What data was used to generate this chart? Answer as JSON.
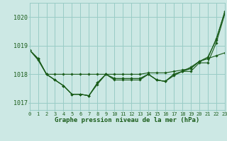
{
  "background_color": "#cce8e4",
  "grid_color": "#99ccc6",
  "line_color": "#1a5c1a",
  "marker_color": "#1a5c1a",
  "xlabel": "Graphe pression niveau de la mer (hPa)",
  "xlabel_color": "#1a5c1a",
  "ylim": [
    1016.75,
    1020.5
  ],
  "xlim": [
    0,
    23
  ],
  "yticks": [
    1017,
    1018,
    1019,
    1020
  ],
  "figsize": [
    3.2,
    2.0
  ],
  "dpi": 100,
  "series": [
    [
      1018.85,
      1018.55,
      1018.0,
      1017.8,
      1017.6,
      1017.3,
      1017.3,
      1017.25,
      1017.7,
      1018.0,
      1017.8,
      1017.8,
      1017.8,
      1017.8,
      1018.0,
      1017.8,
      1017.75,
      1018.0,
      1018.1,
      1018.1,
      1018.4,
      1018.4,
      1019.1,
      1020.1
    ],
    [
      1018.85,
      1018.55,
      1018.0,
      1017.8,
      1017.6,
      1017.3,
      1017.3,
      1017.25,
      1017.7,
      1018.0,
      1017.85,
      1017.85,
      1017.85,
      1017.85,
      1018.0,
      1017.8,
      1017.75,
      1018.0,
      1018.1,
      1018.25,
      1018.45,
      1018.55,
      1019.25,
      1020.15
    ],
    [
      1018.85,
      1018.55,
      1018.0,
      1017.8,
      1017.6,
      1017.3,
      1017.3,
      1017.25,
      1017.65,
      1018.0,
      1017.85,
      1017.85,
      1017.85,
      1017.85,
      1018.0,
      1017.8,
      1017.75,
      1017.95,
      1018.1,
      1018.2,
      1018.45,
      1018.6,
      1019.2,
      1020.2
    ],
    [
      1018.85,
      1018.5,
      1018.0,
      1018.0,
      1018.0,
      1018.0,
      1018.0,
      1018.0,
      1018.0,
      1018.0,
      1018.0,
      1018.0,
      1018.0,
      1018.0,
      1018.05,
      1018.05,
      1018.05,
      1018.1,
      1018.15,
      1018.2,
      1018.45,
      1018.55,
      1018.65,
      1018.75
    ]
  ]
}
